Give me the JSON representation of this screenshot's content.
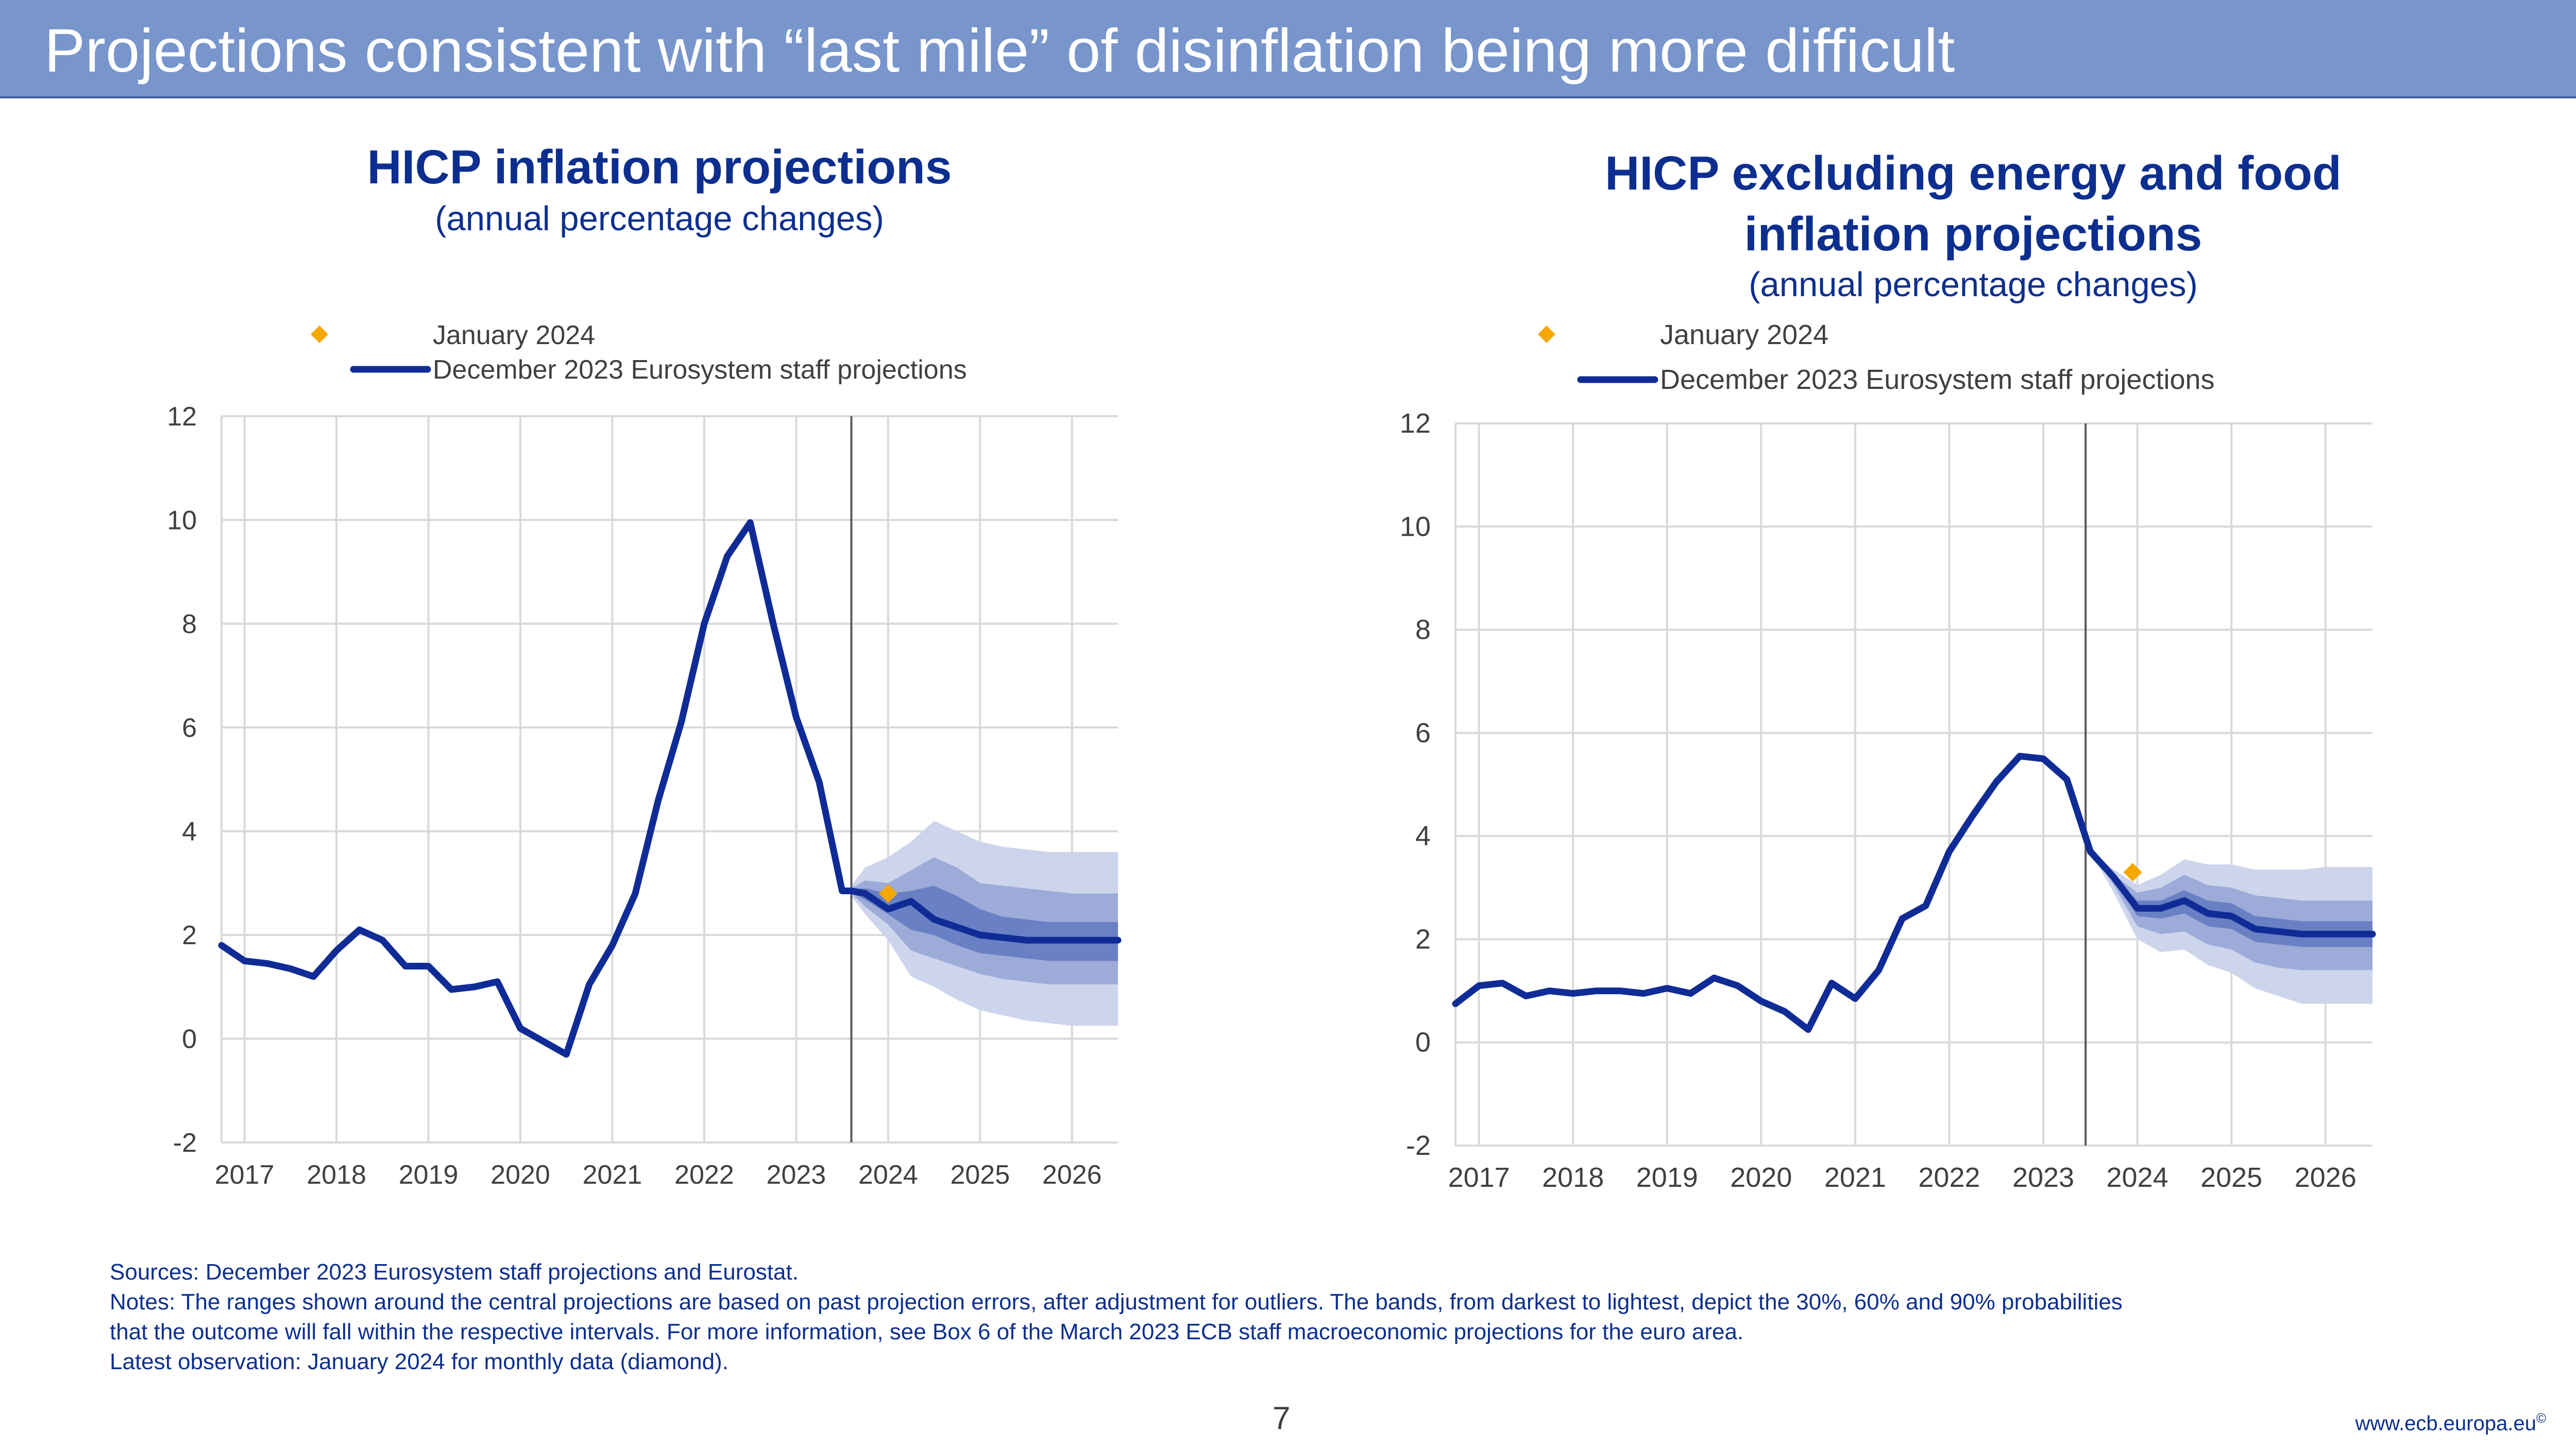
{
  "slide": {
    "title": "Projections consistent with “last mile” of disinflation being more difficult",
    "page_number": "7",
    "url": "www.ecb.europa.eu",
    "copyright_mark": "©"
  },
  "notes": {
    "sources": "Sources: December 2023 Eurosystem staff projections and Eurostat.",
    "notes_line1": "Notes: The ranges shown around the central projections are based on past projection errors, after adjustment for outliers. The bands, from darkest to lightest, depict the 30%, 60% and 90% probabilities",
    "notes_line2": "that the outcome will fall within the respective intervals. For more information, see Box 6 of the March 2023 ECB staff macroeconomic projections for the euro area.",
    "latest": "Latest observation: January 2024 for monthly data (diamond)."
  },
  "colors": {
    "header_bg": "#7895cc",
    "title_blue": "#0c2f8f",
    "line_blue": "#0f2c96",
    "band_90": "#cdd5ec",
    "band_60": "#9cabd8",
    "band_30": "#6a80c4",
    "diamond": "#f5a800"
  },
  "chart_data": [
    {
      "type": "line",
      "title": "HICP inflation projections",
      "subtitle": "(annual percentage changes)",
      "ylim": [
        -2,
        12
      ],
      "yticks": [
        -2,
        0,
        2,
        4,
        6,
        8,
        10,
        12
      ],
      "xlim": [
        2016.75,
        2026.5
      ],
      "xticks": [
        2017,
        2018,
        2019,
        2020,
        2021,
        2022,
        2023,
        2024,
        2025,
        2026
      ],
      "grid": true,
      "legend_position": "top-left",
      "legend": [
        "January 2024",
        "December 2023 Eurosystem staff projections"
      ],
      "projection_start": 2023.6,
      "series": [
        {
          "name": "December 2023 Eurosystem staff projections",
          "x": [
            2016.75,
            2017.0,
            2017.25,
            2017.5,
            2017.75,
            2018.0,
            2018.25,
            2018.5,
            2018.75,
            2019.0,
            2019.25,
            2019.5,
            2019.75,
            2020.0,
            2020.25,
            2020.5,
            2020.75,
            2021.0,
            2021.25,
            2021.5,
            2021.75,
            2022.0,
            2022.25,
            2022.5,
            2022.75,
            2023.0,
            2023.25,
            2023.5,
            2023.6,
            2023.75,
            2024.0,
            2024.25,
            2024.5,
            2024.75,
            2025.0,
            2025.25,
            2025.5,
            2025.75,
            2026.0,
            2026.25,
            2026.5
          ],
          "values": [
            1.8,
            1.5,
            1.45,
            1.35,
            1.2,
            1.7,
            2.1,
            1.9,
            1.4,
            1.4,
            0.95,
            1.0,
            1.1,
            0.2,
            -0.05,
            -0.3,
            1.05,
            1.8,
            2.8,
            4.6,
            6.1,
            8.0,
            9.3,
            9.95,
            8.0,
            6.2,
            4.95,
            2.85,
            2.85,
            2.8,
            2.5,
            2.65,
            2.3,
            2.15,
            2.0,
            1.95,
            1.9,
            1.9,
            1.9,
            1.9,
            1.9
          ]
        },
        {
          "name": "January 2024",
          "x": [
            2024.0
          ],
          "values": [
            2.8
          ]
        }
      ],
      "bands": {
        "x": [
          2023.6,
          2023.75,
          2024.0,
          2024.25,
          2024.5,
          2024.75,
          2025.0,
          2025.25,
          2025.5,
          2025.75,
          2026.0,
          2026.25,
          2026.5
        ],
        "p90": {
          "lower": [
            2.75,
            2.4,
            1.9,
            1.2,
            1.0,
            0.75,
            0.55,
            0.45,
            0.35,
            0.3,
            0.25,
            0.25,
            0.25
          ],
          "upper": [
            2.95,
            3.3,
            3.5,
            3.8,
            4.2,
            4.0,
            3.8,
            3.7,
            3.65,
            3.6,
            3.6,
            3.6,
            3.6
          ]
        },
        "p60": {
          "lower": [
            2.8,
            2.55,
            2.2,
            1.7,
            1.55,
            1.4,
            1.25,
            1.15,
            1.1,
            1.05,
            1.05,
            1.05,
            1.05
          ],
          "upper": [
            2.9,
            3.05,
            3.0,
            3.25,
            3.5,
            3.3,
            3.0,
            2.95,
            2.9,
            2.85,
            2.8,
            2.8,
            2.8
          ]
        },
        "p30": {
          "lower": [
            2.82,
            2.68,
            2.4,
            2.1,
            2.0,
            1.8,
            1.65,
            1.6,
            1.55,
            1.5,
            1.5,
            1.5,
            1.5
          ],
          "upper": [
            2.88,
            2.9,
            2.8,
            2.85,
            2.95,
            2.75,
            2.5,
            2.35,
            2.3,
            2.25,
            2.25,
            2.25,
            2.25
          ]
        }
      }
    },
    {
      "type": "line",
      "title": "HICP excluding energy and food inflation projections",
      "title_line1": "HICP excluding energy and food",
      "title_line2": "inflation projections",
      "subtitle": "(annual percentage changes)",
      "ylim": [
        -2,
        12
      ],
      "yticks": [
        -2,
        0,
        2,
        4,
        6,
        8,
        10,
        12
      ],
      "xlim": [
        2016.75,
        2026.5
      ],
      "xticks": [
        2017,
        2018,
        2019,
        2020,
        2021,
        2022,
        2023,
        2024,
        2025,
        2026
      ],
      "grid": true,
      "legend_position": "top-left",
      "legend": [
        "January 2024",
        "December 2023 Eurosystem staff projections"
      ],
      "projection_start": 2023.45,
      "series": [
        {
          "name": "December 2023 Eurosystem staff projections",
          "x": [
            2016.75,
            2017.0,
            2017.25,
            2017.5,
            2017.75,
            2018.0,
            2018.25,
            2018.5,
            2018.75,
            2019.0,
            2019.25,
            2019.5,
            2019.75,
            2020.0,
            2020.25,
            2020.5,
            2020.75,
            2021.0,
            2021.25,
            2021.5,
            2021.75,
            2022.0,
            2022.25,
            2022.5,
            2022.75,
            2023.0,
            2023.25,
            2023.5,
            2023.75,
            2024.0,
            2024.25,
            2024.5,
            2024.75,
            2025.0,
            2025.25,
            2025.5,
            2025.75,
            2026.0,
            2026.25,
            2026.5
          ],
          "values": [
            0.75,
            1.1,
            1.15,
            0.9,
            1.0,
            0.95,
            1.0,
            1.0,
            0.95,
            1.05,
            0.95,
            1.25,
            1.1,
            0.8,
            0.6,
            0.25,
            1.15,
            0.85,
            1.4,
            2.4,
            2.65,
            3.7,
            4.4,
            5.05,
            5.55,
            5.5,
            5.1,
            3.7,
            3.2,
            2.6,
            2.6,
            2.75,
            2.5,
            2.45,
            2.2,
            2.15,
            2.1,
            2.1,
            2.1,
            2.1
          ]
        },
        {
          "name": "January 2024",
          "x": [
            2023.95
          ],
          "values": [
            3.3
          ]
        }
      ],
      "bands": {
        "x": [
          2023.5,
          2023.75,
          2024.0,
          2024.25,
          2024.5,
          2024.75,
          2025.0,
          2025.25,
          2025.5,
          2025.75,
          2026.0,
          2026.25,
          2026.5
        ],
        "p90": {
          "lower": [
            3.7,
            2.9,
            2.0,
            1.75,
            1.8,
            1.5,
            1.35,
            1.05,
            0.9,
            0.75,
            0.75,
            0.75,
            0.75
          ],
          "upper": [
            3.7,
            3.35,
            3.05,
            3.25,
            3.55,
            3.45,
            3.45,
            3.35,
            3.35,
            3.35,
            3.4,
            3.4,
            3.4
          ]
        },
        "p60": {
          "lower": [
            3.7,
            3.05,
            2.25,
            2.1,
            2.15,
            1.9,
            1.8,
            1.55,
            1.45,
            1.4,
            1.4,
            1.4,
            1.4
          ],
          "upper": [
            3.7,
            3.25,
            2.9,
            3.0,
            3.25,
            3.05,
            3.0,
            2.85,
            2.8,
            2.75,
            2.75,
            2.75,
            2.75
          ]
        },
        "p30": {
          "lower": [
            3.7,
            3.15,
            2.45,
            2.4,
            2.5,
            2.25,
            2.2,
            1.95,
            1.9,
            1.85,
            1.85,
            1.85,
            1.85
          ],
          "upper": [
            3.7,
            3.2,
            2.75,
            2.75,
            2.95,
            2.75,
            2.7,
            2.45,
            2.4,
            2.35,
            2.35,
            2.35,
            2.35
          ]
        }
      }
    }
  ]
}
